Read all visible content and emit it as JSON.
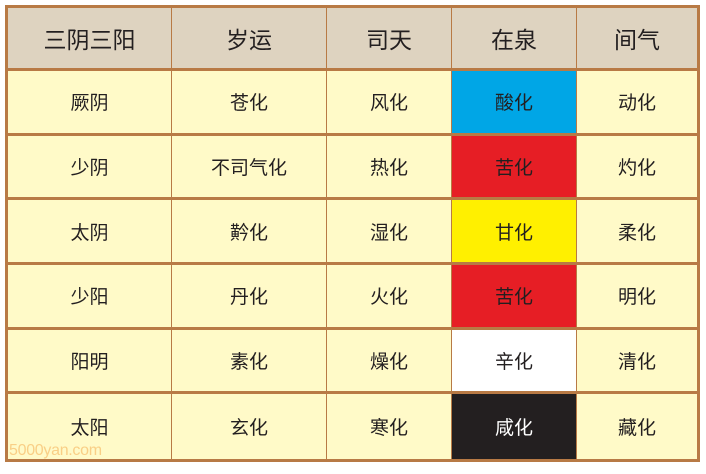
{
  "table": {
    "headers": [
      "三阴三阳",
      "岁运",
      "司天",
      "在泉",
      "间气"
    ],
    "rows": [
      [
        "厥阴",
        "苍化",
        "风化",
        "酸化",
        "动化"
      ],
      [
        "少阴",
        "不司气化",
        "热化",
        "苦化",
        "灼化"
      ],
      [
        "太阴",
        "黅化",
        "湿化",
        "甘化",
        "柔化"
      ],
      [
        "少阳",
        "丹化",
        "火化",
        "苦化",
        "明化"
      ],
      [
        "阳明",
        "素化",
        "燥化",
        "辛化",
        "清化"
      ],
      [
        "太阳",
        "玄化",
        "寒化",
        "咸化",
        "藏化"
      ]
    ],
    "zaiquan_colors": [
      "#00a6e6",
      "#e61e25",
      "#fff000",
      "#e61e25",
      "#ffffff",
      "#231f20"
    ],
    "zaiquan_text_colors": [
      "#231f20",
      "#231f20",
      "#231f20",
      "#231f20",
      "#231f20",
      "#ffffff"
    ]
  },
  "watermark": "5000yan.com"
}
